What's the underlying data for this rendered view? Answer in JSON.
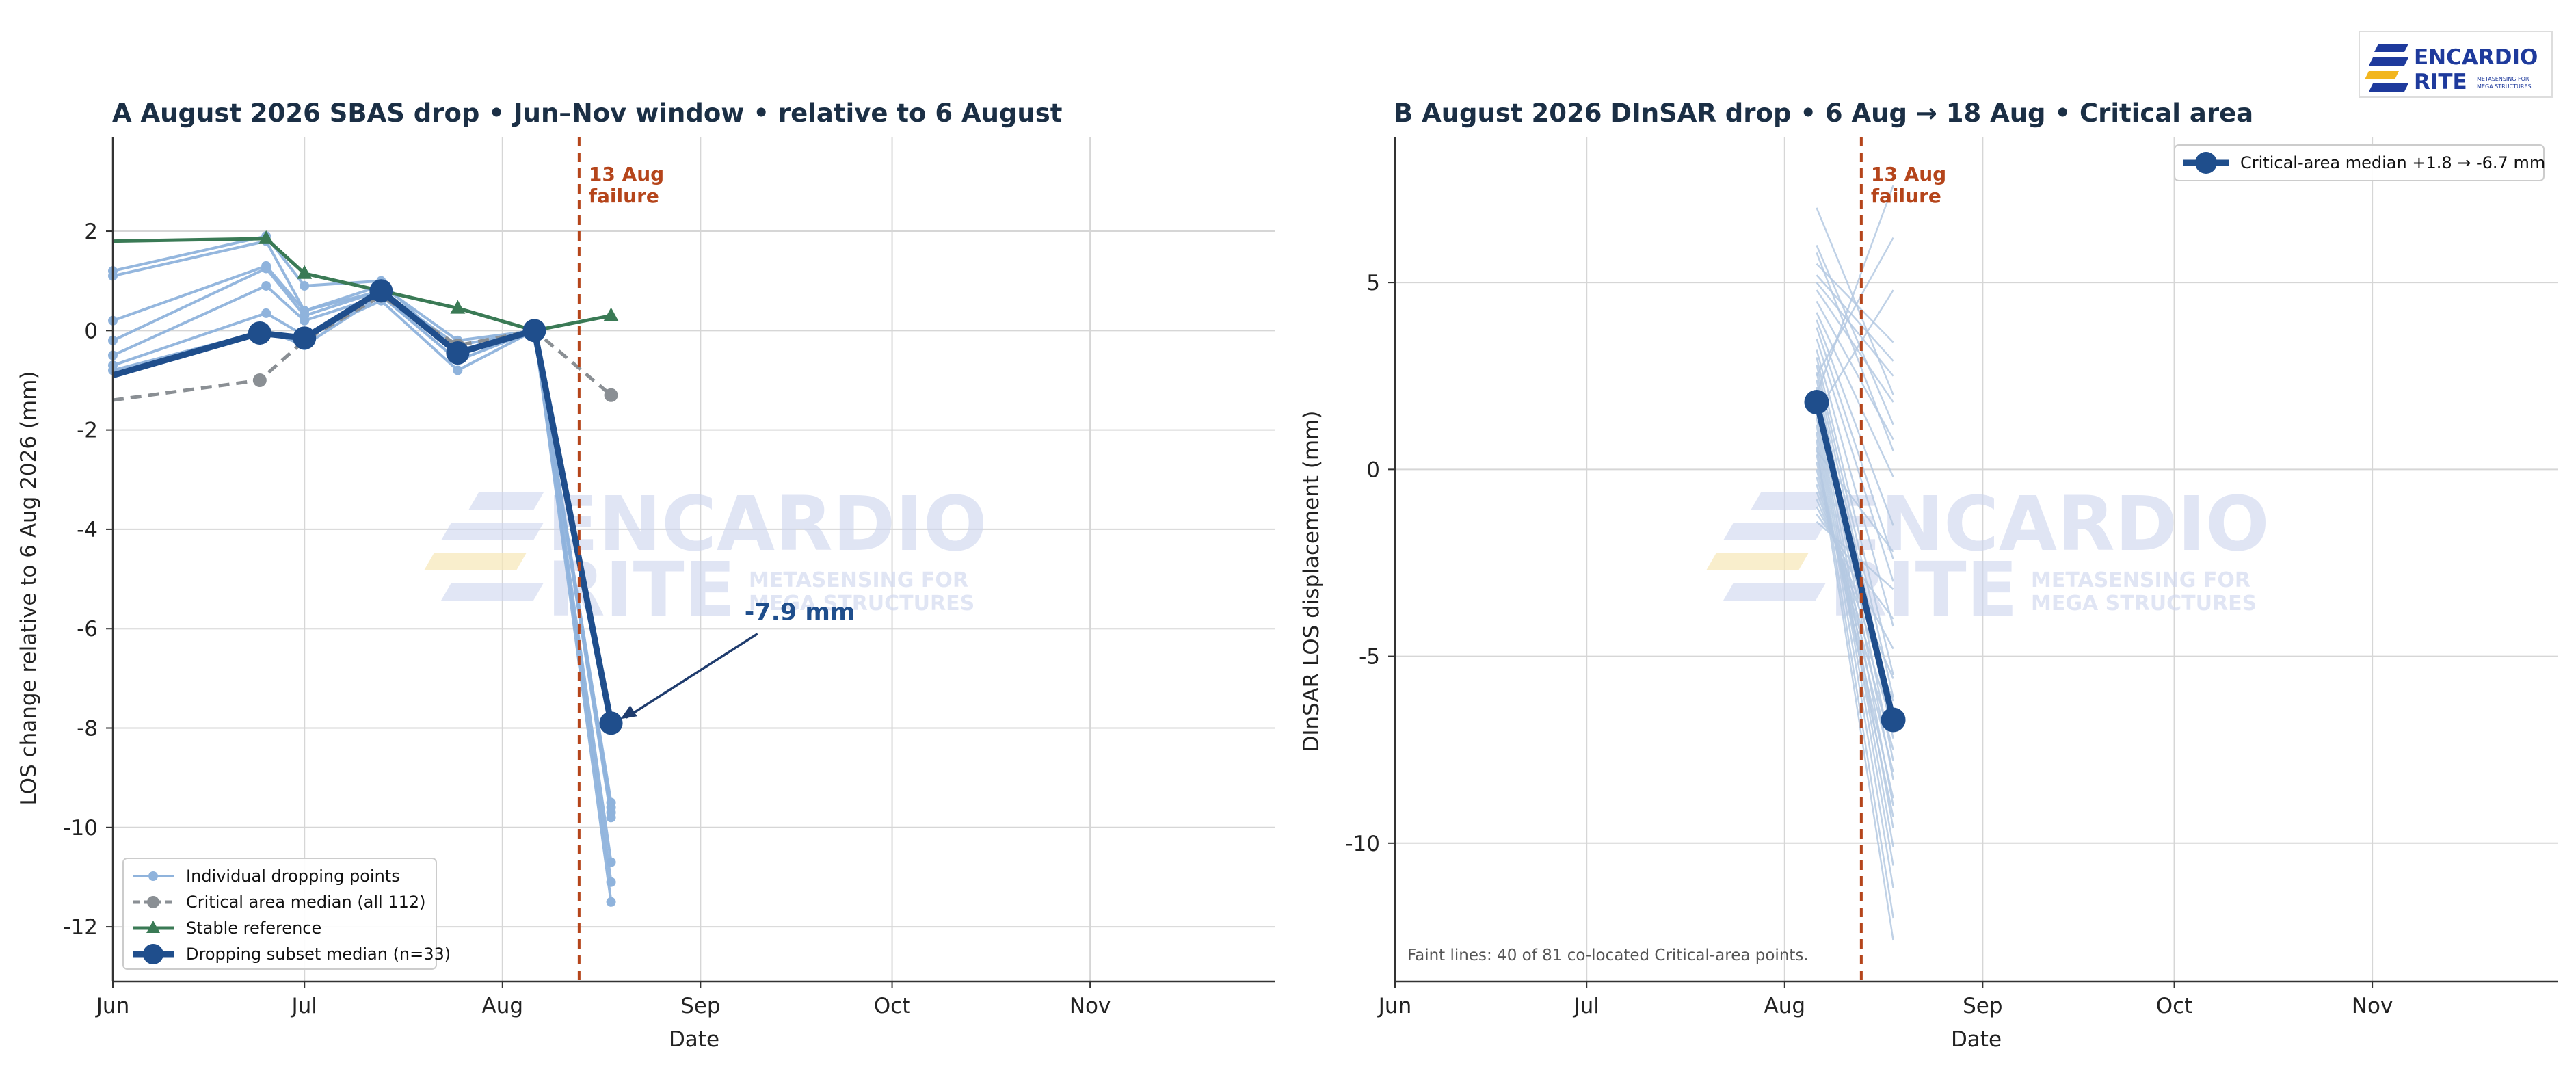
{
  "logo": {
    "word1": "ENCARDIO",
    "word2": "RITE",
    "tagline1": "METASENSING FOR",
    "tagline2": "MEGA STRUCTURES",
    "colors": {
      "blue": "#1e3a9c",
      "yellow": "#f2b620"
    }
  },
  "watermark": {
    "word1": "ENCARDIO",
    "word2": "RITE",
    "tagline1": "METASENSING FOR",
    "tagline2": "MEGA STRUCTURES"
  },
  "colors": {
    "individual": "#8fb3dc",
    "critical_median": "#8a8f94",
    "stable": "#3a7a55",
    "subset_median": "#1f4e8c",
    "failure": "#b5451b",
    "faint": "#b5c9e2",
    "grid": "#d6d6d6"
  },
  "chart_data": [
    {
      "type": "line",
      "panel": "A",
      "title": "A  August 2026 SBAS drop  •  Jun–Nov window  •  relative to 6 August",
      "xlabel": "Date",
      "ylabel": "LOS change relative to 6 Aug 2026 (mm)",
      "x_range": [
        "2026-06-01",
        "2026-11-30"
      ],
      "xlim": [
        "2026-06-01",
        "2026-11-30"
      ],
      "ylim": [
        -13.1,
        3.9
      ],
      "xticks": [
        {
          "label": "Jun",
          "date": "2026-06-01"
        },
        {
          "label": "Jul",
          "date": "2026-07-01"
        },
        {
          "label": "Aug",
          "date": "2026-08-01"
        },
        {
          "label": "Sep",
          "date": "2026-09-01"
        },
        {
          "label": "Oct",
          "date": "2026-10-01"
        },
        {
          "label": "Nov",
          "date": "2026-11-01"
        }
      ],
      "yticks": [
        2,
        0,
        -2,
        -4,
        -6,
        -8,
        -10,
        -12
      ],
      "grid": true,
      "legend_position": "lower-left",
      "failure_line": {
        "date": "2026-08-13",
        "label_line1": "13 Aug",
        "label_line2": "failure"
      },
      "annotation": {
        "text": "-7.9 mm",
        "point": {
          "date": "2026-08-18",
          "value": -7.9
        },
        "text_at": {
          "date": "2026-09-08",
          "value": -5.8
        }
      },
      "legend": [
        {
          "label": "Individual dropping points",
          "series": "individual"
        },
        {
          "label": "Critical area median (all 112)",
          "series": "critical_median"
        },
        {
          "label": "Stable reference",
          "series": "stable"
        },
        {
          "label": "Dropping subset median (n=33)",
          "series": "subset_median"
        }
      ],
      "individual_dates": [
        "2026-06-01",
        "2026-06-25",
        "2026-07-01",
        "2026-07-13",
        "2026-07-25",
        "2026-08-06",
        "2026-08-18"
      ],
      "individual_series": [
        [
          1.2,
          1.9,
          0.9,
          1.0,
          -0.5,
          0,
          -9.5
        ],
        [
          1.1,
          1.8,
          0.4,
          0.8,
          -0.4,
          0,
          -9.7
        ],
        [
          0.2,
          1.3,
          0.4,
          0.9,
          -0.2,
          0,
          -9.8
        ],
        [
          -0.2,
          1.25,
          0.3,
          0.8,
          -0.3,
          0,
          -10.7
        ],
        [
          -0.5,
          0.9,
          0.2,
          0.7,
          -0.6,
          0,
          -11.1
        ],
        [
          -0.7,
          0.35,
          -0.1,
          0.6,
          -0.8,
          0,
          -11.5
        ],
        [
          -0.8,
          0.0,
          -0.3,
          0.7,
          -0.6,
          0,
          -9.6
        ]
      ],
      "critical_median": {
        "dates": [
          "2026-06-01",
          "2026-06-24",
          "2026-07-01",
          "2026-07-13",
          "2026-07-25",
          "2026-08-06",
          "2026-08-18"
        ],
        "values": [
          -1.4,
          -1.0,
          -0.2,
          0.7,
          -0.3,
          0,
          -1.3
        ]
      },
      "stable_reference": {
        "dates": [
          "2026-06-01",
          "2026-06-25",
          "2026-07-01",
          "2026-07-13",
          "2026-07-25",
          "2026-08-06",
          "2026-08-18"
        ],
        "values": [
          1.8,
          1.85,
          1.15,
          0.8,
          0.45,
          0,
          0.3
        ]
      },
      "subset_median": {
        "dates": [
          "2026-06-01",
          "2026-06-24",
          "2026-07-01",
          "2026-07-13",
          "2026-07-25",
          "2026-08-06",
          "2026-08-18"
        ],
        "values": [
          -0.9,
          -0.05,
          -0.15,
          0.8,
          -0.45,
          0,
          -7.9
        ]
      }
    },
    {
      "type": "line",
      "panel": "B",
      "title": "B  August 2026 DInSAR drop  •  6 Aug → 18 Aug  •  Critical area",
      "xlabel": "Date",
      "ylabel": "DInSAR LOS displacement (mm)",
      "x_range": [
        "2026-06-01",
        "2026-11-30"
      ],
      "xlim": [
        "2026-06-01",
        "2026-11-30"
      ],
      "ylim": [
        -13.7,
        8.9
      ],
      "xticks": [
        {
          "label": "Jun",
          "date": "2026-06-01"
        },
        {
          "label": "Jul",
          "date": "2026-07-01"
        },
        {
          "label": "Aug",
          "date": "2026-08-01"
        },
        {
          "label": "Sep",
          "date": "2026-09-01"
        },
        {
          "label": "Oct",
          "date": "2026-10-01"
        },
        {
          "label": "Nov",
          "date": "2026-11-01"
        }
      ],
      "yticks": [
        5,
        0,
        -5,
        -10
      ],
      "grid": true,
      "legend_position": "top-right",
      "failure_line": {
        "date": "2026-08-13",
        "label_line1": "13 Aug",
        "label_line2": "failure"
      },
      "legend": [
        {
          "label": "Critical-area median  +1.8 → -6.7 mm",
          "series": "median"
        }
      ],
      "footnote": "Faint lines: 40 of 81 co-located Critical-area points.",
      "faint_dates": [
        "2026-08-06",
        "2026-08-18"
      ],
      "faint_pairs": [
        [
          7.0,
          2.0
        ],
        [
          6.0,
          1.2
        ],
        [
          5.8,
          0.5
        ],
        [
          5.5,
          3.4
        ],
        [
          5.2,
          2.9
        ],
        [
          5.0,
          2.5
        ],
        [
          4.8,
          1.8
        ],
        [
          4.5,
          0.8
        ],
        [
          4.2,
          -0.2
        ],
        [
          4.0,
          -1.5
        ],
        [
          3.8,
          -2.4
        ],
        [
          3.5,
          -3.0
        ],
        [
          3.2,
          -4.2
        ],
        [
          3.0,
          -5.5
        ],
        [
          2.8,
          -6.1
        ],
        [
          2.6,
          -6.6
        ],
        [
          2.4,
          -7.2
        ],
        [
          2.2,
          -7.8
        ],
        [
          2.0,
          -8.3
        ],
        [
          1.8,
          -9.0
        ],
        [
          1.6,
          -9.6
        ],
        [
          1.4,
          -10.1
        ],
        [
          1.2,
          -10.6
        ],
        [
          1.0,
          -11.2
        ],
        [
          0.8,
          -12.0
        ],
        [
          0.6,
          -12.6
        ],
        [
          0.4,
          -9.3
        ],
        [
          0.2,
          -8.8
        ],
        [
          0.0,
          -8.1
        ],
        [
          -0.2,
          -7.5
        ],
        [
          -0.4,
          -6.9
        ],
        [
          -0.6,
          -6.2
        ],
        [
          -0.8,
          -5.6
        ],
        [
          -1.0,
          -4.8
        ],
        [
          -1.2,
          -4.0
        ],
        [
          -1.4,
          -3.2
        ],
        [
          2.0,
          7.6
        ],
        [
          2.5,
          6.2
        ],
        [
          1.5,
          4.8
        ],
        [
          0.5,
          -2.2
        ]
      ],
      "median": {
        "dates": [
          "2026-08-06",
          "2026-08-18"
        ],
        "values": [
          1.8,
          -6.7
        ]
      }
    }
  ]
}
